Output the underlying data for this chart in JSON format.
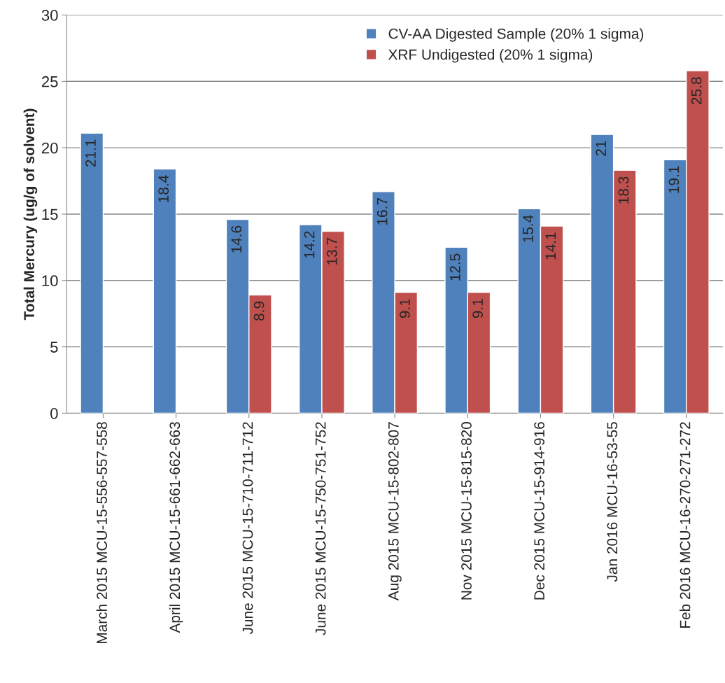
{
  "chart_data": {
    "type": "bar",
    "ylabel": "Total Mercury (ug/g of solvent)",
    "categories": [
      "March 2015 MCU-15-556-557-558",
      "April 2015 MCU-15-661-662-663",
      "June 2015 MCU-15-710-711-712",
      "June 2015 MCU-15-750-751-752",
      "Aug 2015 MCU-15-802-807",
      "Nov 2015 MCU-15-815-820",
      "Dec 2015 MCU-15-914-916",
      "Jan 2016 MCU-16-53-55",
      "Feb 2016 MCU-16-270-271-272"
    ],
    "series": [
      {
        "name": "CV-AA Digested Sample (20% 1 sigma)",
        "color": "#4f81bd",
        "values": [
          21.1,
          18.4,
          14.6,
          14.2,
          16.7,
          12.5,
          15.4,
          21,
          19.1
        ]
      },
      {
        "name": "XRF Undigested (20% 1 sigma)",
        "color": "#c0504d",
        "values": [
          null,
          null,
          8.9,
          13.7,
          9.1,
          9.1,
          14.1,
          18.3,
          25.8
        ]
      }
    ],
    "ylim": [
      0,
      30
    ],
    "yticks": [
      0,
      5,
      10,
      15,
      20,
      25,
      30
    ],
    "grid": "y",
    "legend": "top right",
    "data_labels": true
  }
}
